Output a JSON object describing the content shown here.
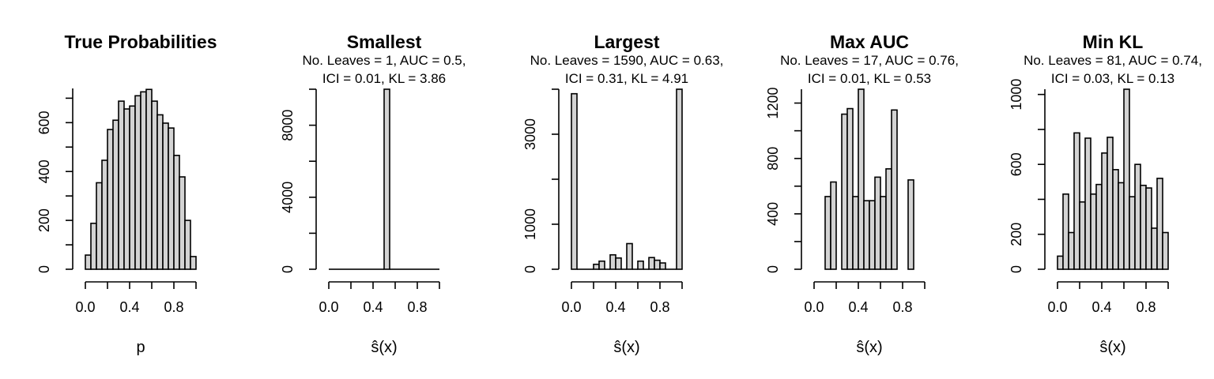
{
  "chart_data": [
    {
      "type": "bar",
      "title": "True Probabilities",
      "subtitle_lines": [],
      "xlabel": "p",
      "ylabel": "",
      "bin_width": 0.05,
      "x_bin_start": 0.0,
      "xlim": [
        0,
        1
      ],
      "x_ticks": [
        "0.0",
        "0.4",
        "0.8"
      ],
      "x_tick_values": [
        0.0,
        0.4,
        0.8
      ],
      "ylim": [
        0,
        740
      ],
      "y_ticks": [
        "0",
        "200",
        "400",
        "600"
      ],
      "y_tick_values": [
        0,
        200,
        400,
        600
      ],
      "values": [
        58,
        188,
        354,
        446,
        572,
        610,
        688,
        656,
        668,
        710,
        726,
        736,
        688,
        632,
        598,
        578,
        466,
        378,
        200,
        52
      ]
    },
    {
      "type": "bar",
      "title": "Smallest",
      "subtitle_lines": [
        "No. Leaves = 1, AUC = 0.5,",
        "ICI = 0.01, KL = 3.86"
      ],
      "xlabel": "ŝ(x)",
      "ylabel": "",
      "bin_width": 0.05,
      "x_bin_start": 0.0,
      "xlim": [
        0,
        1
      ],
      "x_ticks": [
        "0.0",
        "0.4",
        "0.8"
      ],
      "x_tick_values": [
        0.0,
        0.4,
        0.8
      ],
      "ylim": [
        0,
        10000
      ],
      "y_ticks": [
        "0",
        "4000",
        "8000"
      ],
      "y_tick_values": [
        0,
        4000,
        8000
      ],
      "values": [
        0,
        0,
        0,
        0,
        0,
        0,
        0,
        0,
        0,
        0,
        10000,
        0,
        0,
        0,
        0,
        0,
        0,
        0,
        0,
        0
      ]
    },
    {
      "type": "bar",
      "title": "Largest",
      "subtitle_lines": [
        "No. Leaves = 1590, AUC = 0.63,",
        "ICI = 0.31, KL = 4.91"
      ],
      "xlabel": "ŝ(x)",
      "ylabel": "",
      "bin_width": 0.05,
      "x_bin_start": 0.0,
      "xlim": [
        0,
        1
      ],
      "x_ticks": [
        "0.0",
        "0.4",
        "0.8"
      ],
      "x_tick_values": [
        0.0,
        0.4,
        0.8
      ],
      "ylim": [
        0,
        4000
      ],
      "y_ticks": [
        "0",
        "1000",
        "3000"
      ],
      "y_tick_values": [
        0,
        1000,
        3000
      ],
      "values": [
        3900,
        0,
        0,
        0,
        110,
        180,
        0,
        320,
        250,
        0,
        570,
        0,
        180,
        0,
        260,
        200,
        140,
        0,
        0,
        4000
      ]
    },
    {
      "type": "bar",
      "title": "Max AUC",
      "subtitle_lines": [
        "No. Leaves = 17, AUC = 0.76,",
        "ICI = 0.01, KL = 0.53"
      ],
      "xlabel": "ŝ(x)",
      "ylabel": "",
      "bin_width": 0.05,
      "x_bin_start": 0.0,
      "xlim": [
        0,
        1
      ],
      "x_ticks": [
        "0.0",
        "0.4",
        "0.8"
      ],
      "x_tick_values": [
        0.0,
        0.4,
        0.8
      ],
      "ylim": [
        0,
        1300
      ],
      "y_ticks": [
        "0",
        "400",
        "800",
        "1200"
      ],
      "y_tick_values": [
        0,
        400,
        800,
        1200
      ],
      "values": [
        0,
        0,
        525,
        630,
        0,
        1120,
        1160,
        525,
        1300,
        495,
        495,
        665,
        525,
        725,
        1150,
        0,
        0,
        645,
        0,
        0
      ]
    },
    {
      "type": "bar",
      "title": "Min KL",
      "subtitle_lines": [
        "No. Leaves = 81, AUC = 0.74,",
        "ICI = 0.03, KL = 0.13"
      ],
      "xlabel": "ŝ(x)",
      "ylabel": "",
      "bin_width": 0.05,
      "x_bin_start": 0.0,
      "xlim": [
        0,
        1
      ],
      "x_ticks": [
        "0.0",
        "0.4",
        "0.8"
      ],
      "x_tick_values": [
        0.0,
        0.4,
        0.8
      ],
      "ylim": [
        0,
        1030
      ],
      "y_ticks": [
        "0",
        "200",
        "600",
        "1000"
      ],
      "y_tick_values": [
        0,
        200,
        600,
        1000
      ],
      "values": [
        75,
        430,
        210,
        780,
        385,
        750,
        430,
        485,
        665,
        755,
        570,
        495,
        1030,
        415,
        600,
        480,
        465,
        235,
        520,
        210
      ]
    }
  ]
}
